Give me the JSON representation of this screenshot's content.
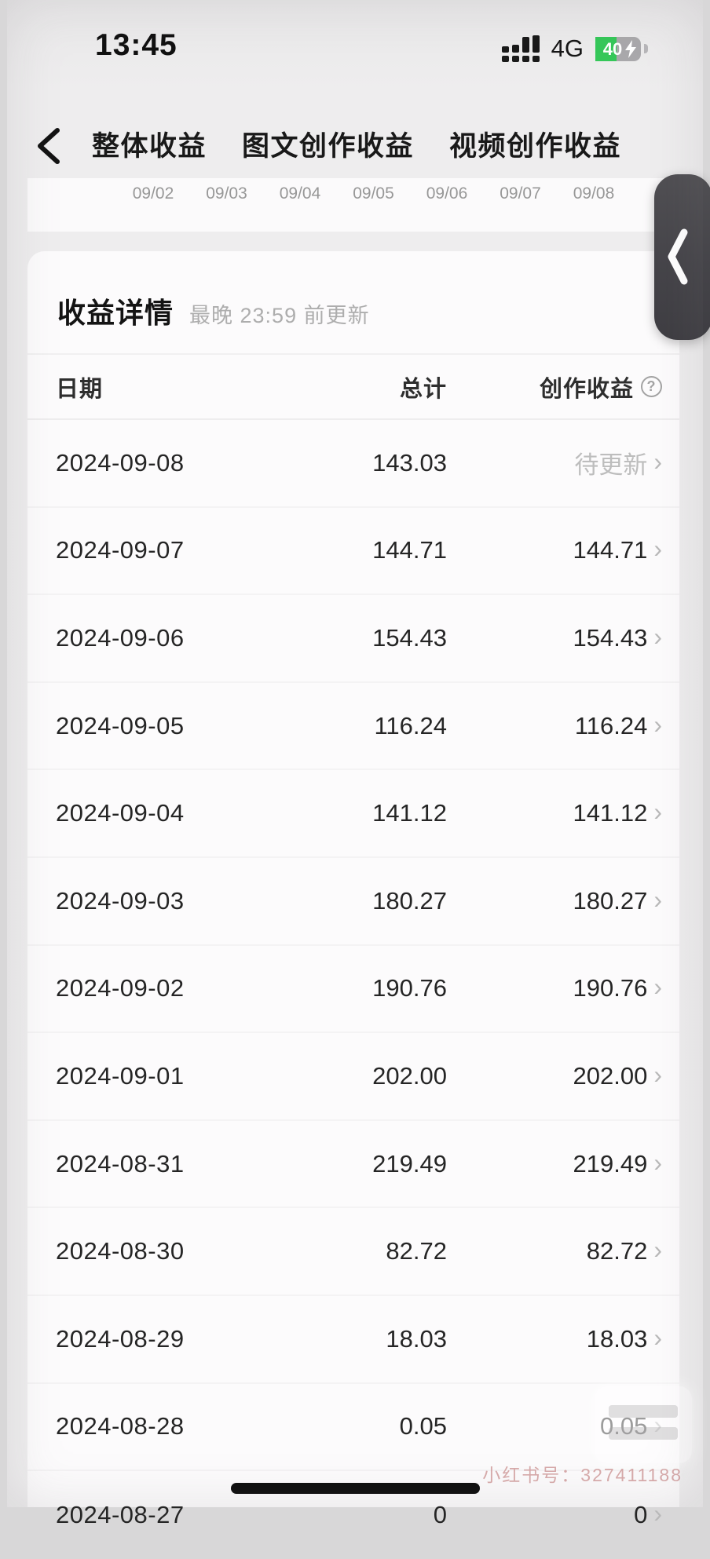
{
  "status_bar": {
    "time": "13:45",
    "network": "4G",
    "battery_percent": "40"
  },
  "nav": {
    "tabs": [
      {
        "label": "整体收益",
        "active": true
      },
      {
        "label": "图文创作收益",
        "active": false
      },
      {
        "label": "视频创作收益",
        "active": false
      }
    ]
  },
  "chart_axis": {
    "dates": [
      "09/02",
      "09/03",
      "09/04",
      "09/05",
      "09/06",
      "09/07",
      "09/08"
    ]
  },
  "earnings": {
    "title": "收益详情",
    "update_note": "最晚 23:59 前更新",
    "columns": {
      "date": "日期",
      "total": "总计",
      "creation": "创作收益"
    },
    "rows": [
      {
        "date": "2024-09-08",
        "total": "143.03",
        "creation": "待更新",
        "pending": true
      },
      {
        "date": "2024-09-07",
        "total": "144.71",
        "creation": "144.71",
        "pending": false
      },
      {
        "date": "2024-09-06",
        "total": "154.43",
        "creation": "154.43",
        "pending": false
      },
      {
        "date": "2024-09-05",
        "total": "116.24",
        "creation": "116.24",
        "pending": false
      },
      {
        "date": "2024-09-04",
        "total": "141.12",
        "creation": "141.12",
        "pending": false
      },
      {
        "date": "2024-09-03",
        "total": "180.27",
        "creation": "180.27",
        "pending": false
      },
      {
        "date": "2024-09-02",
        "total": "190.76",
        "creation": "190.76",
        "pending": false
      },
      {
        "date": "2024-09-01",
        "total": "202.00",
        "creation": "202.00",
        "pending": false
      },
      {
        "date": "2024-08-31",
        "total": "219.49",
        "creation": "219.49",
        "pending": false
      },
      {
        "date": "2024-08-30",
        "total": "82.72",
        "creation": "82.72",
        "pending": false
      },
      {
        "date": "2024-08-29",
        "total": "18.03",
        "creation": "18.03",
        "pending": false
      },
      {
        "date": "2024-08-28",
        "total": "0.05",
        "creation": "0.05",
        "pending": false
      },
      {
        "date": "2024-08-27",
        "total": "0",
        "creation": "0",
        "pending": false
      }
    ],
    "row_chevron": "›"
  },
  "watermark": {
    "text": "小红书号：327411188"
  },
  "colors": {
    "accent_red": "#ee4238",
    "battery_green": "#35c759",
    "fab_dark": "#454449"
  }
}
